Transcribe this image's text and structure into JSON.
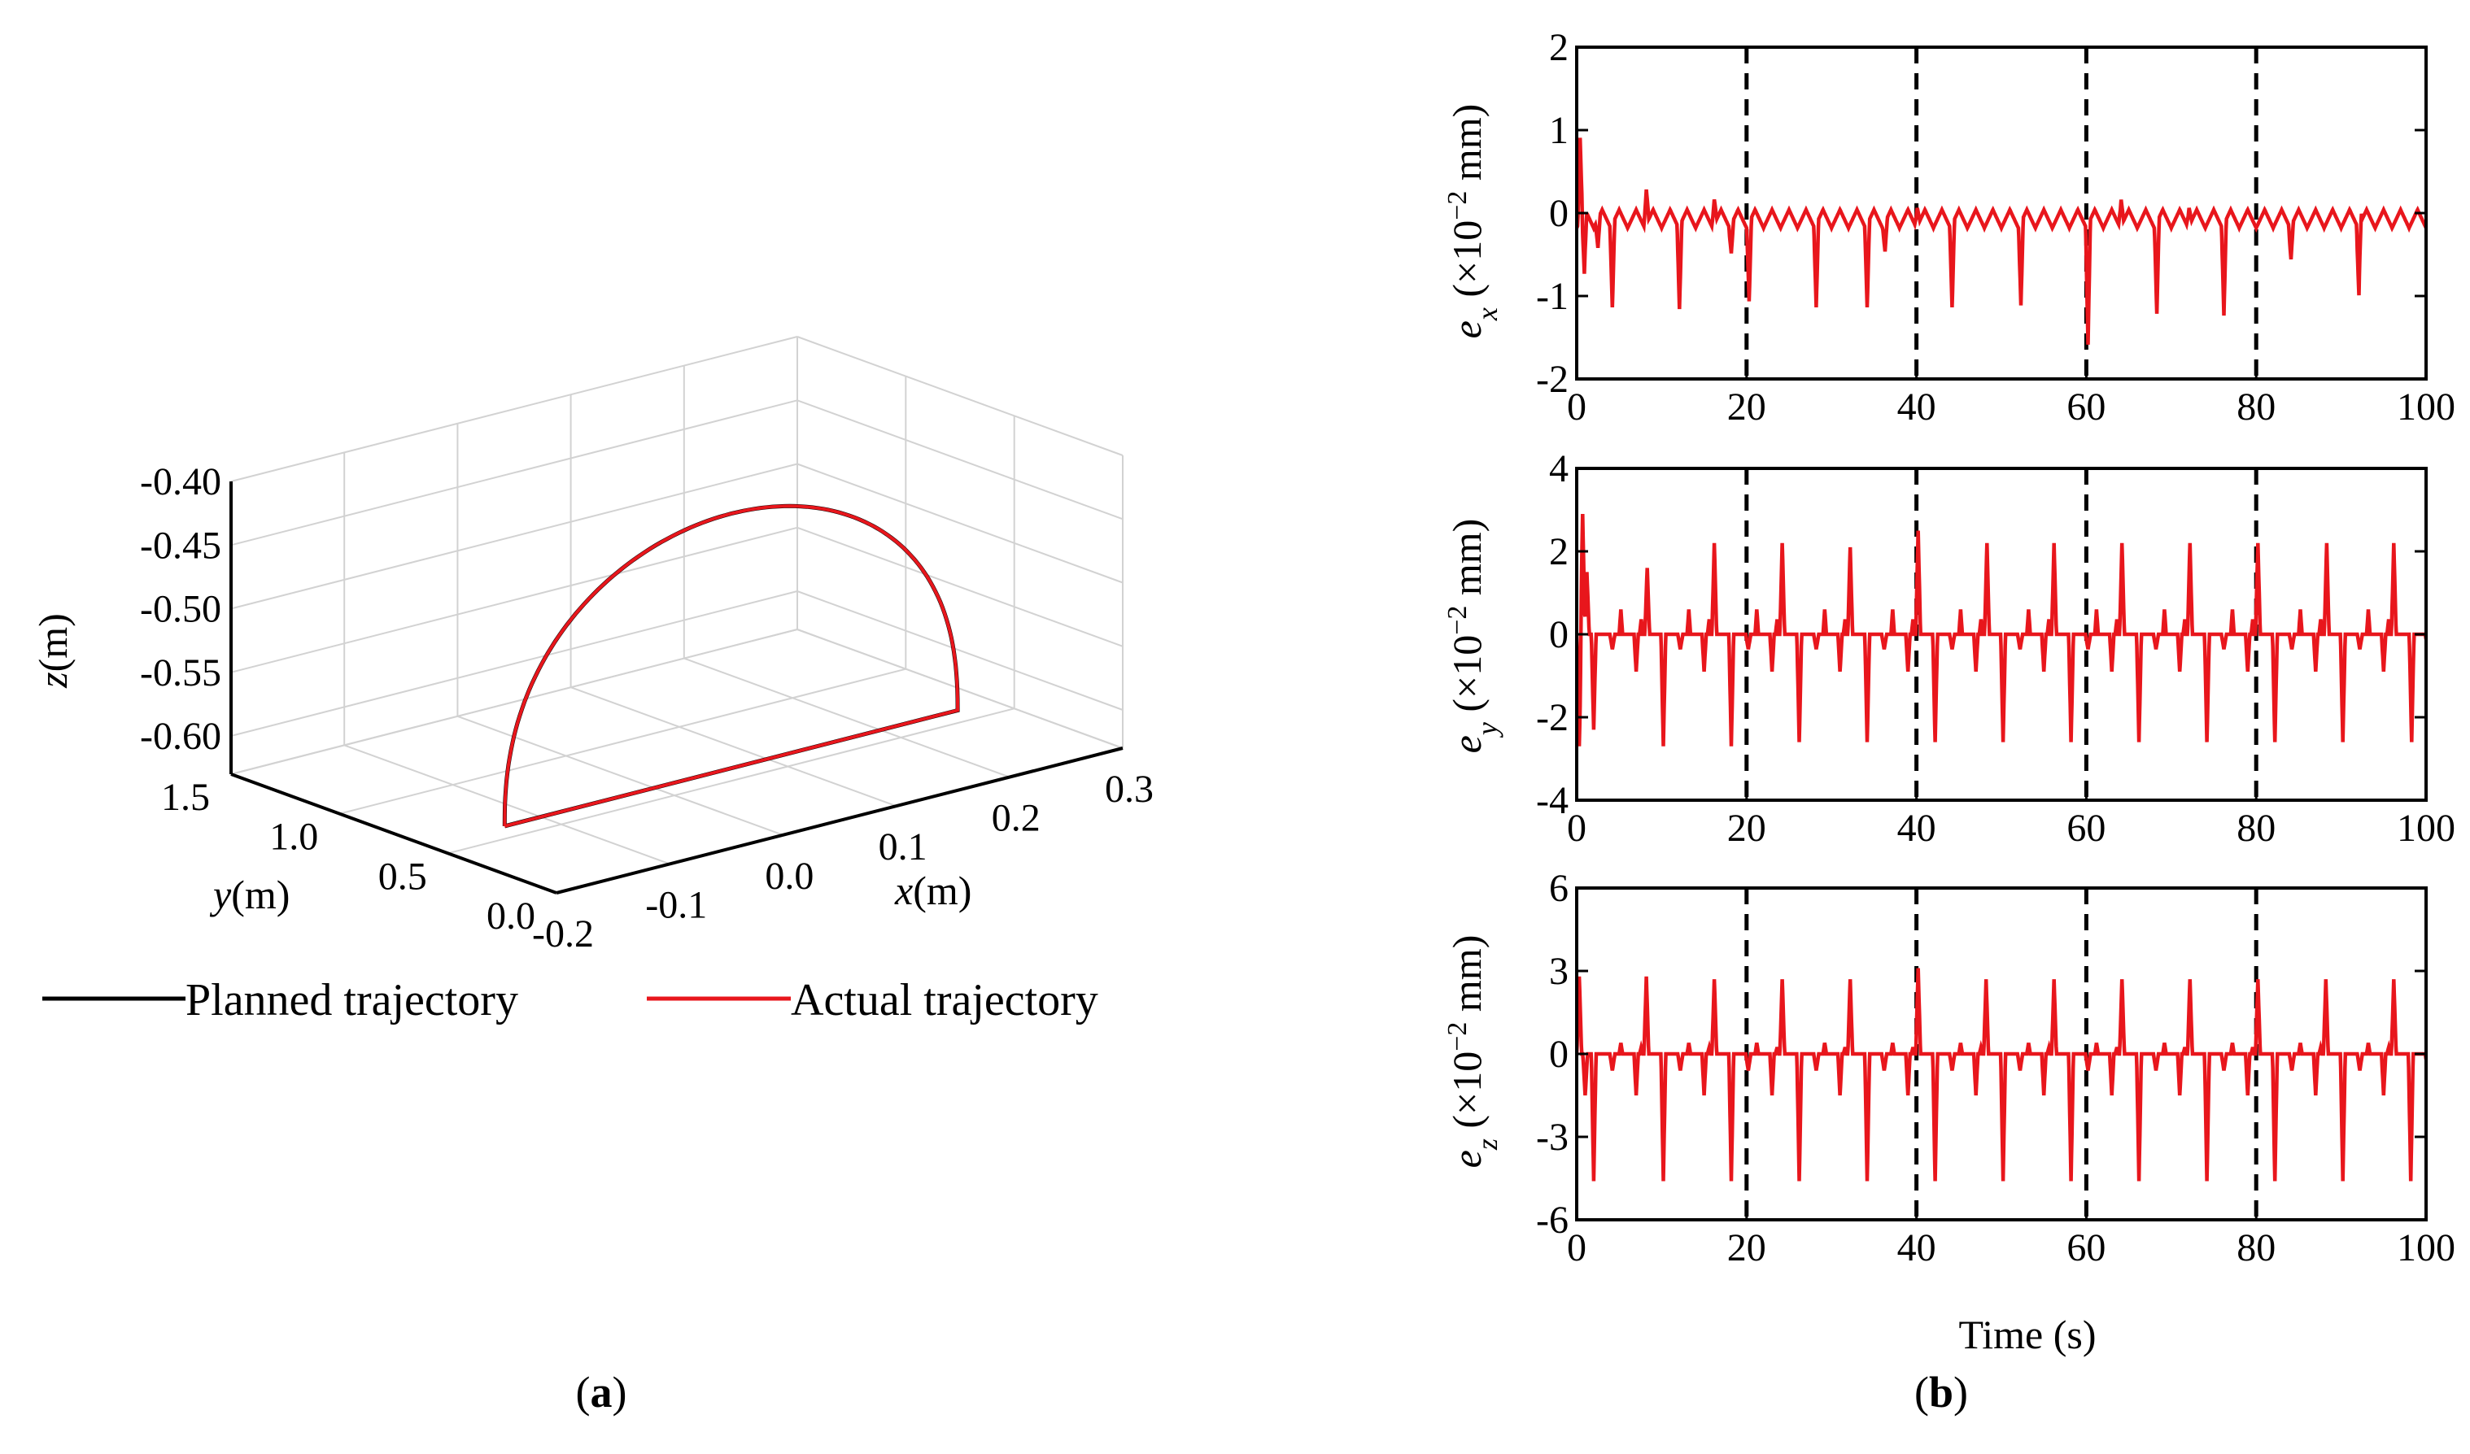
{
  "colors": {
    "planned": "#000000",
    "actual": "#e8161c",
    "grid": "#d2d2d2",
    "axis": "#000000",
    "divider": "#000000"
  },
  "panel_a": {
    "label_open": "(",
    "label_letter": "a",
    "label_close": ")",
    "legend": [
      {
        "name": "Planned trajectory",
        "color": "#000000"
      },
      {
        "name": "Actual trajectory",
        "color": "#e8161c"
      }
    ]
  },
  "panel_b": {
    "label_open": "(",
    "label_letter": "b",
    "label_close": ")"
  },
  "chart_data": [
    {
      "type": "line",
      "projection": "3d",
      "xlabel": {
        "sym": "x",
        "unit": "(m)"
      },
      "ylabel": {
        "sym": "y",
        "unit": "(m)"
      },
      "zlabel": {
        "sym": "z",
        "unit": "(m)"
      },
      "x_ticks": [
        "-0.2",
        "-0.1",
        "0.0",
        "0.1",
        "0.2",
        "0.3"
      ],
      "y_ticks": [
        "0.0",
        "0.5",
        "1.0",
        "1.5"
      ],
      "z_ticks": [
        "-0.40",
        "-0.45",
        "-0.50",
        "-0.55",
        "-0.60"
      ],
      "xlim": [
        -0.2,
        0.3
      ],
      "ylim": [
        0.0,
        1.5
      ],
      "zlim": [
        -0.63,
        -0.4
      ],
      "grid": true,
      "legend_position": "bottom",
      "series": [
        {
          "name": "Planned trajectory",
          "shape": "half-ellipse arch closed by straight base",
          "base_z": -0.62,
          "peak_z": -0.42,
          "start": [
            -0.15,
            0.5,
            -0.62
          ],
          "end": [
            0.25,
            0.5,
            -0.62
          ]
        },
        {
          "name": "Actual trajectory",
          "shape": "overlaps planned trajectory",
          "base_z": -0.62,
          "peak_z": -0.42,
          "start": [
            -0.15,
            0.5,
            -0.62
          ],
          "end": [
            0.25,
            0.5,
            -0.62
          ]
        }
      ]
    },
    {
      "type": "line",
      "ylabel": {
        "sym": "e",
        "sub": "x",
        "unit_pre": " (×10",
        "unit_exp": "−2",
        "unit_post": " mm)"
      },
      "xlim": [
        0,
        100
      ],
      "ylim": [
        -2,
        2
      ],
      "x_ticks": [
        "0",
        "20",
        "40",
        "60",
        "80",
        "100"
      ],
      "y_ticks": [
        "2",
        "1",
        "0",
        "-1",
        "-2"
      ],
      "vlines": [
        20,
        40,
        60,
        80
      ],
      "series": [
        {
          "name": "",
          "period": 4,
          "baseline": 0.0,
          "spike_times": [
            0.4,
            0.9,
            2.5,
            4.2,
            12.1,
            18.2,
            20.3,
            28.2,
            34.2,
            36.3,
            44.2,
            52.3,
            60.2,
            68.3,
            76.2,
            84.1,
            92.1
          ],
          "spike_values": [
            1.0,
            -0.75,
            -0.35,
            -1.0,
            -1.0,
            -0.35,
            -0.95,
            -1.0,
            -1.0,
            -0.35,
            -1.0,
            -1.0,
            -1.45,
            -1.1,
            -1.1,
            -0.4,
            -1.0
          ],
          "peak_times": [
            8.2,
            16.2,
            40.1,
            64.1,
            72.1,
            92.2
          ],
          "peak_values": [
            0.42,
            0.3,
            0.22,
            0.32,
            0.22,
            0.25
          ],
          "ripple_amplitude": 0.2
        }
      ]
    },
    {
      "type": "line",
      "ylabel": {
        "sym": "e",
        "sub": "y",
        "unit_pre": " (×10",
        "unit_exp": "−2",
        "unit_post": " mm)"
      },
      "xlim": [
        0,
        100
      ],
      "ylim": [
        -4,
        4
      ],
      "x_ticks": [
        "0",
        "20",
        "40",
        "60",
        "80",
        "100"
      ],
      "y_ticks": [
        "4",
        "2",
        "0",
        "-2",
        "-4"
      ],
      "vlines": [
        20,
        40,
        60,
        80
      ],
      "series": [
        {
          "name": "",
          "period": 8,
          "baseline": 0.0,
          "spike_times": [
            0.3,
            0.7,
            1.2,
            2.0,
            8.3,
            10.2,
            16.2,
            18.2,
            24.2,
            26.2,
            32.2,
            34.2,
            40.2,
            42.2,
            48.3,
            50.2,
            56.2,
            58.2,
            64.2,
            66.2,
            72.2,
            74.2,
            80.2,
            82.2,
            88.3,
            90.2,
            96.2,
            98.3
          ],
          "spike_values": [
            -2.7,
            2.9,
            1.5,
            -2.3,
            1.6,
            -2.7,
            2.2,
            -2.7,
            2.2,
            -2.6,
            2.1,
            -2.6,
            2.5,
            -2.6,
            2.2,
            -2.6,
            2.2,
            -2.6,
            2.2,
            -2.6,
            2.2,
            -2.6,
            2.2,
            -2.6,
            2.2,
            -2.6,
            2.2,
            -2.6
          ],
          "small_dips": -0.9,
          "small_bumps": 0.6
        }
      ]
    },
    {
      "type": "line",
      "ylabel": {
        "sym": "e",
        "sub": "z",
        "unit_pre": " (×10",
        "unit_exp": "−2",
        "unit_post": " mm)"
      },
      "xlabel": "Time (s)",
      "xlim": [
        0,
        100
      ],
      "ylim": [
        -6,
        6
      ],
      "x_ticks": [
        "0",
        "20",
        "40",
        "60",
        "80",
        "100"
      ],
      "y_ticks": [
        "6",
        "3",
        "0",
        "-3",
        "-6"
      ],
      "vlines": [
        20,
        40,
        60,
        80
      ],
      "series": [
        {
          "name": "",
          "period": 8,
          "baseline": 0.0,
          "spike_times": [
            0.3,
            1.0,
            2.0,
            8.2,
            10.2,
            16.2,
            18.2,
            24.2,
            26.2,
            32.2,
            34.2,
            40.2,
            42.2,
            48.2,
            50.2,
            56.2,
            58.2,
            64.2,
            66.2,
            72.2,
            74.2,
            80.2,
            82.2,
            88.2,
            90.2,
            96.2,
            98.2
          ],
          "spike_values": [
            2.8,
            -1.5,
            -4.6,
            2.8,
            -4.6,
            2.7,
            -4.6,
            2.7,
            -4.6,
            2.7,
            -4.6,
            3.1,
            -4.6,
            2.7,
            -4.6,
            2.7,
            -4.6,
            2.7,
            -4.6,
            2.7,
            -4.6,
            2.7,
            -4.6,
            2.7,
            -4.6,
            2.7,
            -4.6
          ],
          "small_dips": -1.5,
          "small_bumps": 0.4
        }
      ]
    }
  ]
}
